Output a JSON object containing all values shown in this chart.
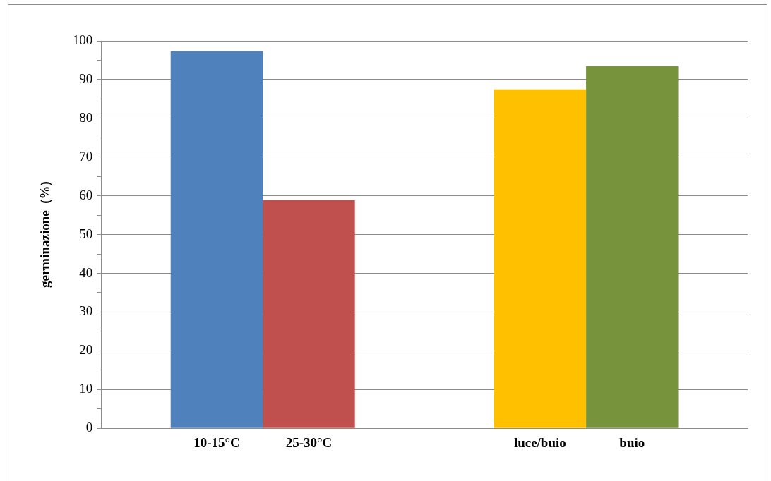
{
  "chart_data": {
    "type": "bar",
    "ylabel": "germinazione  (%)",
    "categories": [
      null,
      null
    ],
    "series": [
      {
        "name": "10-15°C",
        "color": "#4f81bd",
        "values": [
          97.3,
          null
        ]
      },
      {
        "name": "25-30°C",
        "color": "#c0504d",
        "values": [
          58.9,
          null
        ]
      },
      {
        "name": "luce/buio",
        "color": "#ffc000",
        "values": [
          null,
          87.5
        ]
      },
      {
        "name": "buio",
        "color": "#77933c",
        "values": [
          null,
          93.5
        ]
      }
    ],
    "ylim": [
      0,
      100
    ],
    "yticks": [
      0,
      {
        "value": 5,
        "label": null
      },
      10,
      {
        "value": 15,
        "label": null
      },
      20,
      {
        "value": 25,
        "label": null
      },
      30,
      {
        "value": 35,
        "label": null
      },
      40,
      {
        "value": 45,
        "label": null
      },
      50,
      {
        "value": 55,
        "label": null
      },
      60,
      {
        "value": 65,
        "label": null
      },
      70,
      {
        "value": 75,
        "label": null
      },
      80,
      {
        "value": 85,
        "label": null
      },
      90,
      {
        "value": 95,
        "label": null
      },
      100
    ],
    "grid": "y",
    "legend": false
  }
}
